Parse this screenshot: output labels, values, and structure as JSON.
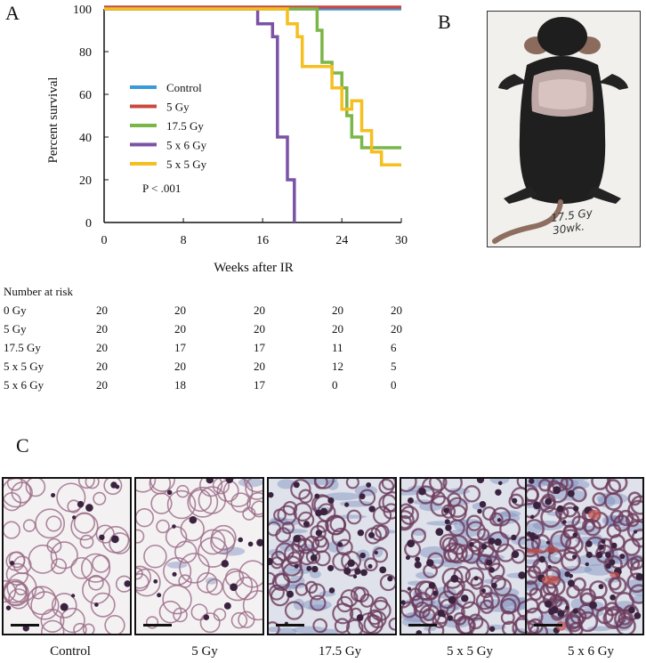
{
  "panels": {
    "a": "A",
    "b": "B",
    "c": "C"
  },
  "chart_data": {
    "type": "line",
    "xlabel": "Weeks after IR",
    "ylabel": "Percent survival",
    "xlim": [
      0,
      30
    ],
    "ylim": [
      0,
      100
    ],
    "xticks": [
      "0",
      "8",
      "16",
      "24",
      "30"
    ],
    "yticks": [
      "0",
      "20",
      "40",
      "60",
      "80",
      "100"
    ],
    "annotation": "P < .001",
    "legend_position": "center-left",
    "series": [
      {
        "name": "Control",
        "color": "#3a9ad9",
        "points": [
          [
            0,
            100
          ],
          [
            30,
            100
          ]
        ]
      },
      {
        "name": "5 Gy",
        "color": "#c9483f",
        "points": [
          [
            0,
            100
          ],
          [
            30,
            100
          ]
        ]
      },
      {
        "name": "17.5 Gy",
        "color": "#7ab648",
        "points": [
          [
            0,
            100
          ],
          [
            21.5,
            100
          ],
          [
            21.5,
            90
          ],
          [
            22,
            90
          ],
          [
            22,
            75
          ],
          [
            23,
            75
          ],
          [
            23,
            70
          ],
          [
            24,
            70
          ],
          [
            24,
            63
          ],
          [
            24.5,
            63
          ],
          [
            24.5,
            50
          ],
          [
            25,
            50
          ],
          [
            25,
            40
          ],
          [
            26,
            40
          ],
          [
            26,
            35
          ],
          [
            30,
            35
          ]
        ]
      },
      {
        "name": "5 x 6 Gy",
        "color": "#7b52a6",
        "points": [
          [
            0,
            100
          ],
          [
            15.5,
            100
          ],
          [
            15.5,
            93
          ],
          [
            17,
            93
          ],
          [
            17,
            87
          ],
          [
            17.5,
            87
          ],
          [
            17.5,
            40
          ],
          [
            18.5,
            40
          ],
          [
            18.5,
            20
          ],
          [
            19.2,
            20
          ],
          [
            19.2,
            0
          ]
        ]
      },
      {
        "name": "5 x 5 Gy",
        "color": "#f5bf1f",
        "points": [
          [
            0,
            100
          ],
          [
            18.5,
            100
          ],
          [
            18.5,
            93
          ],
          [
            19.5,
            93
          ],
          [
            19.5,
            87
          ],
          [
            20,
            87
          ],
          [
            20,
            73
          ],
          [
            23,
            73
          ],
          [
            23,
            63
          ],
          [
            24,
            63
          ],
          [
            24,
            53
          ],
          [
            25,
            53
          ],
          [
            25,
            57
          ],
          [
            26,
            57
          ],
          [
            26,
            43
          ],
          [
            27,
            43
          ],
          [
            27,
            33
          ],
          [
            28,
            33
          ],
          [
            28,
            27
          ],
          [
            30,
            27
          ]
        ]
      }
    ]
  },
  "risk_table": {
    "title": "Number at risk",
    "rows": [
      {
        "label": "0 Gy",
        "values": [
          "20",
          "20",
          "20",
          "20",
          "20"
        ]
      },
      {
        "label": "5 Gy",
        "values": [
          "20",
          "20",
          "20",
          "20",
          "20"
        ]
      },
      {
        "label": "17.5 Gy",
        "values": [
          "20",
          "17",
          "17",
          "11",
          "6"
        ]
      },
      {
        "label": "5 x 5 Gy",
        "values": [
          "20",
          "20",
          "20",
          "12",
          "5"
        ]
      },
      {
        "label": "5 x 6 Gy",
        "values": [
          "20",
          "18",
          "17",
          "0",
          "0"
        ]
      }
    ]
  },
  "photo": {
    "label_line1": "17.5 Gy",
    "label_line2": "30wk."
  },
  "histology": [
    {
      "label": "Control",
      "density": 0.25,
      "fibrosis": 0.0
    },
    {
      "label": "5 Gy",
      "density": 0.25,
      "fibrosis": 0.05
    },
    {
      "label": "17.5 Gy",
      "density": 0.6,
      "fibrosis": 0.45
    },
    {
      "label": "5 x 5 Gy",
      "density": 0.7,
      "fibrosis": 0.7
    },
    {
      "label": "5 x 6 Gy",
      "density": 0.85,
      "fibrosis": 0.8
    }
  ]
}
